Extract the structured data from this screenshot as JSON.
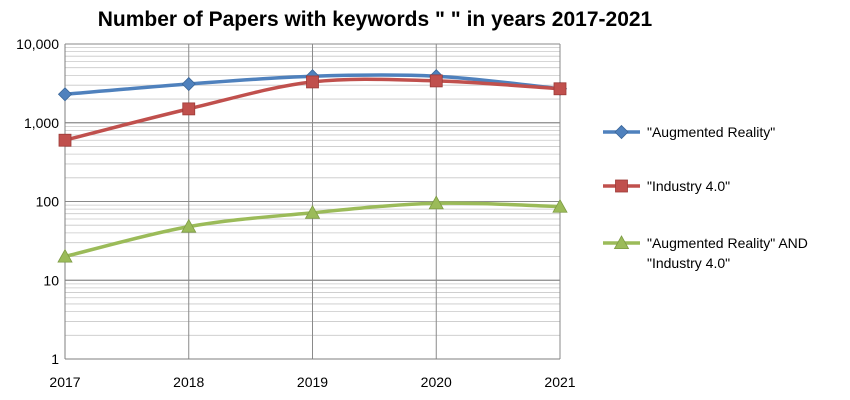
{
  "chart_data": {
    "type": "line",
    "title": "Number of Papers with keywords \" \" in years 2017-2021",
    "xlabel": "",
    "ylabel": "",
    "yscale": "log",
    "ylim": [
      1,
      10000
    ],
    "categories": [
      "2017",
      "2018",
      "2019",
      "2020",
      "2021"
    ],
    "y_tick_labels": [
      "1",
      "10",
      "100",
      "1,000",
      "10,000"
    ],
    "y_tick_values": [
      1,
      10,
      100,
      1000,
      10000
    ],
    "grid": true,
    "legend_position": "right",
    "series": [
      {
        "name": "\"Augmented Reality\"",
        "legend_lines": [
          "\"Augmented Reality\""
        ],
        "color": "#4F81BD",
        "marker": "diamond",
        "values": [
          2300,
          3100,
          3900,
          3900,
          2700
        ]
      },
      {
        "name": "\"Industry 4.0\"",
        "legend_lines": [
          "\"Industry 4.0\""
        ],
        "color": "#C0504D",
        "marker": "square",
        "values": [
          600,
          1500,
          3300,
          3400,
          2700
        ]
      },
      {
        "name": "\"Augmented Reality\" AND \"Industry 4.0\"",
        "legend_lines": [
          "\"Augmented Reality\" AND",
          "\"Industry 4.0\""
        ],
        "color": "#9BBB59",
        "marker": "triangle",
        "values": [
          20,
          48,
          72,
          95,
          86
        ]
      }
    ]
  }
}
